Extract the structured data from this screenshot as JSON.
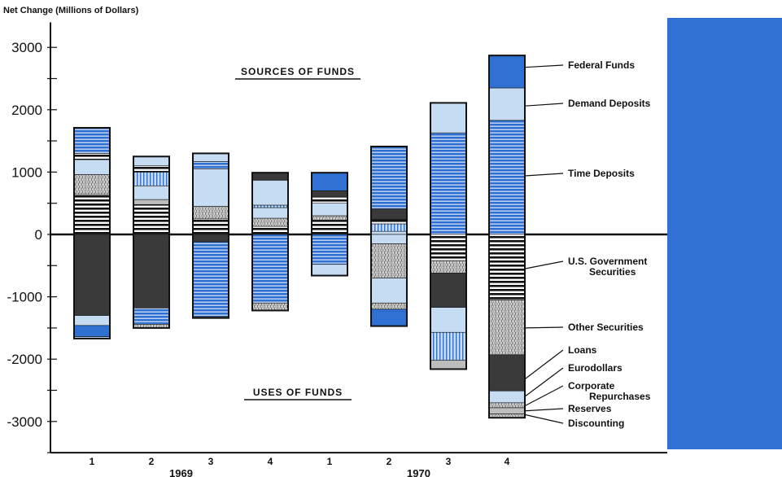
{
  "chart_data": {
    "type": "bar",
    "subtype": "stacked",
    "ylabel": "Net Change (Millions of Dollars)",
    "ylim": [
      -3500,
      3400
    ],
    "yticks": [
      3000,
      2000,
      1000,
      0,
      -1000,
      -2000,
      -3000
    ],
    "ytick_labels": [
      "3000",
      "2000",
      "1000",
      "0",
      "-1000",
      "-2000",
      "-3000"
    ],
    "categories": [
      "1",
      "2",
      "3",
      "4",
      "1",
      "2",
      "3",
      "4"
    ],
    "years": [
      {
        "label": "1969",
        "quarters": [
          0,
          1,
          2,
          3
        ]
      },
      {
        "label": "1970",
        "quarters": [
          4,
          5,
          6,
          7
        ]
      }
    ],
    "annotations": {
      "sources": "SOURCES OF FUNDS",
      "uses": "USES OF FUNDS"
    },
    "fills": {
      "federal_funds": "solid-blue",
      "demand_deposits": "light-blue",
      "time_deposits": "blue-stripe",
      "us_government_securities": "black-stripe",
      "other_securities": "gray-wavy",
      "loans": "dark",
      "eurodollars": "light-blue-stripe",
      "corporate_repurchases": "light-blue",
      "reserves": "gray-wavy",
      "discounting": "gray-light"
    },
    "legend": [
      {
        "name": "Federal Funds",
        "value_y": 2680
      },
      {
        "name": "Demand Deposits",
        "value_y": 2060
      },
      {
        "name": "Time Deposits",
        "value_y": 940
      },
      {
        "name": "U.S. Government Securities",
        "name_lines": [
          "U.S. Government",
          "Securities"
        ],
        "value_y": -550
      },
      {
        "name": "Other Securities",
        "value_y": -1500
      },
      {
        "name": "Loans",
        "value_y": -2320
      },
      {
        "name": "Eurodollars",
        "value_y": -2600
      },
      {
        "name": "Corporate Repurchases",
        "name_lines": [
          "Corporate",
          "Repurchases"
        ],
        "value_y": -2750
      },
      {
        "name": "Reserves",
        "value_y": -2830
      },
      {
        "name": "Discounting",
        "value_y": -2890
      }
    ],
    "bars": [
      {
        "category": "1",
        "year": "1969",
        "sources": [
          {
            "series": "us_government_securities",
            "value": 640
          },
          {
            "series": "other_securities",
            "value": 320
          },
          {
            "series": "demand_deposits",
            "value": 240
          },
          {
            "series": "us_government_securities",
            "value": 100
          },
          {
            "series": "time_deposits",
            "value": 410
          }
        ],
        "uses": [
          {
            "series": "loans",
            "value": 1300
          },
          {
            "series": "demand_deposits",
            "value": 160
          },
          {
            "series": "federal_funds",
            "value": 180
          },
          {
            "series": "demand_deposits",
            "value": 30
          }
        ]
      },
      {
        "category": "2",
        "year": "1969",
        "sources": [
          {
            "series": "us_government_securities",
            "value": 480
          },
          {
            "series": "gray-light",
            "value": 80
          },
          {
            "series": "demand_deposits",
            "value": 220
          },
          {
            "series": "eurodollars",
            "value": 220
          },
          {
            "series": "us_government_securities",
            "value": 100
          },
          {
            "series": "demand_deposits",
            "value": 150
          }
        ],
        "uses": [
          {
            "series": "loans",
            "value": 1180
          },
          {
            "series": "time_deposits",
            "value": 260
          },
          {
            "series": "other_securities",
            "value": 60
          }
        ]
      },
      {
        "category": "3",
        "year": "1969",
        "sources": [
          {
            "series": "us_government_securities",
            "value": 250
          },
          {
            "series": "other_securities",
            "value": 200
          },
          {
            "series": "demand_deposits",
            "value": 600
          },
          {
            "series": "time_deposits",
            "value": 120
          },
          {
            "series": "demand_deposits",
            "value": 130
          }
        ],
        "uses": [
          {
            "series": "loans",
            "value": 120
          },
          {
            "series": "time_deposits",
            "value": 1200
          },
          {
            "series": "other_securities",
            "value": 20
          }
        ]
      },
      {
        "category": "4",
        "year": "1969",
        "sources": [
          {
            "series": "us_government_securities",
            "value": 130
          },
          {
            "series": "other_securities",
            "value": 130
          },
          {
            "series": "demand_deposits",
            "value": 170
          },
          {
            "series": "eurodollars",
            "value": 40
          },
          {
            "series": "demand_deposits",
            "value": 400
          },
          {
            "series": "loans",
            "value": 120
          }
        ],
        "uses": [
          {
            "series": "time_deposits",
            "value": 1100
          },
          {
            "series": "other_securities",
            "value": 120
          }
        ]
      },
      {
        "category": "1",
        "year": "1970",
        "sources": [
          {
            "series": "us_government_securities",
            "value": 230
          },
          {
            "series": "other_securities",
            "value": 70
          },
          {
            "series": "demand_deposits",
            "value": 200
          },
          {
            "series": "us_government_securities",
            "value": 100
          },
          {
            "series": "loans",
            "value": 100
          },
          {
            "series": "federal_funds",
            "value": 290
          }
        ],
        "uses": [
          {
            "series": "time_deposits",
            "value": 480
          },
          {
            "series": "demand_deposits",
            "value": 180
          }
        ]
      },
      {
        "category": "2",
        "year": "1970",
        "sources": [
          {
            "series": "demand_deposits",
            "value": 50
          },
          {
            "series": "eurodollars",
            "value": 120
          },
          {
            "series": "us_government_securities",
            "value": 70
          },
          {
            "series": "loans",
            "value": 170
          },
          {
            "series": "time_deposits",
            "value": 1000
          }
        ],
        "uses": [
          {
            "series": "demand_deposits",
            "value": 150
          },
          {
            "series": "other_securities",
            "value": 550
          },
          {
            "series": "demand_deposits",
            "value": 400
          },
          {
            "series": "other_securities",
            "value": 100
          },
          {
            "series": "federal_funds",
            "value": 270
          }
        ]
      },
      {
        "category": "3",
        "year": "1970",
        "sources": [
          {
            "series": "time_deposits",
            "value": 1630
          },
          {
            "series": "demand_deposits",
            "value": 480
          }
        ],
        "uses": [
          {
            "series": "us_government_securities",
            "value": 420
          },
          {
            "series": "other_securities",
            "value": 200
          },
          {
            "series": "loans",
            "value": 550
          },
          {
            "series": "demand_deposits",
            "value": 400
          },
          {
            "series": "eurodollars",
            "value": 450
          },
          {
            "series": "gray-light",
            "value": 140
          }
        ]
      },
      {
        "category": "4",
        "year": "1970",
        "sources": [
          {
            "series": "time_deposits",
            "value": 1830
          },
          {
            "series": "demand_deposits",
            "value": 520
          },
          {
            "series": "federal_funds",
            "value": 520
          }
        ],
        "uses": [
          {
            "series": "us_government_securities",
            "value": 1050
          },
          {
            "series": "other_securities",
            "value": 880
          },
          {
            "series": "loans",
            "value": 580
          },
          {
            "series": "demand_deposits",
            "value": 190
          },
          {
            "series": "other_securities",
            "value": 80
          },
          {
            "series": "gray-light",
            "value": 100
          },
          {
            "series": "other_securities",
            "value": 60
          }
        ]
      }
    ]
  }
}
